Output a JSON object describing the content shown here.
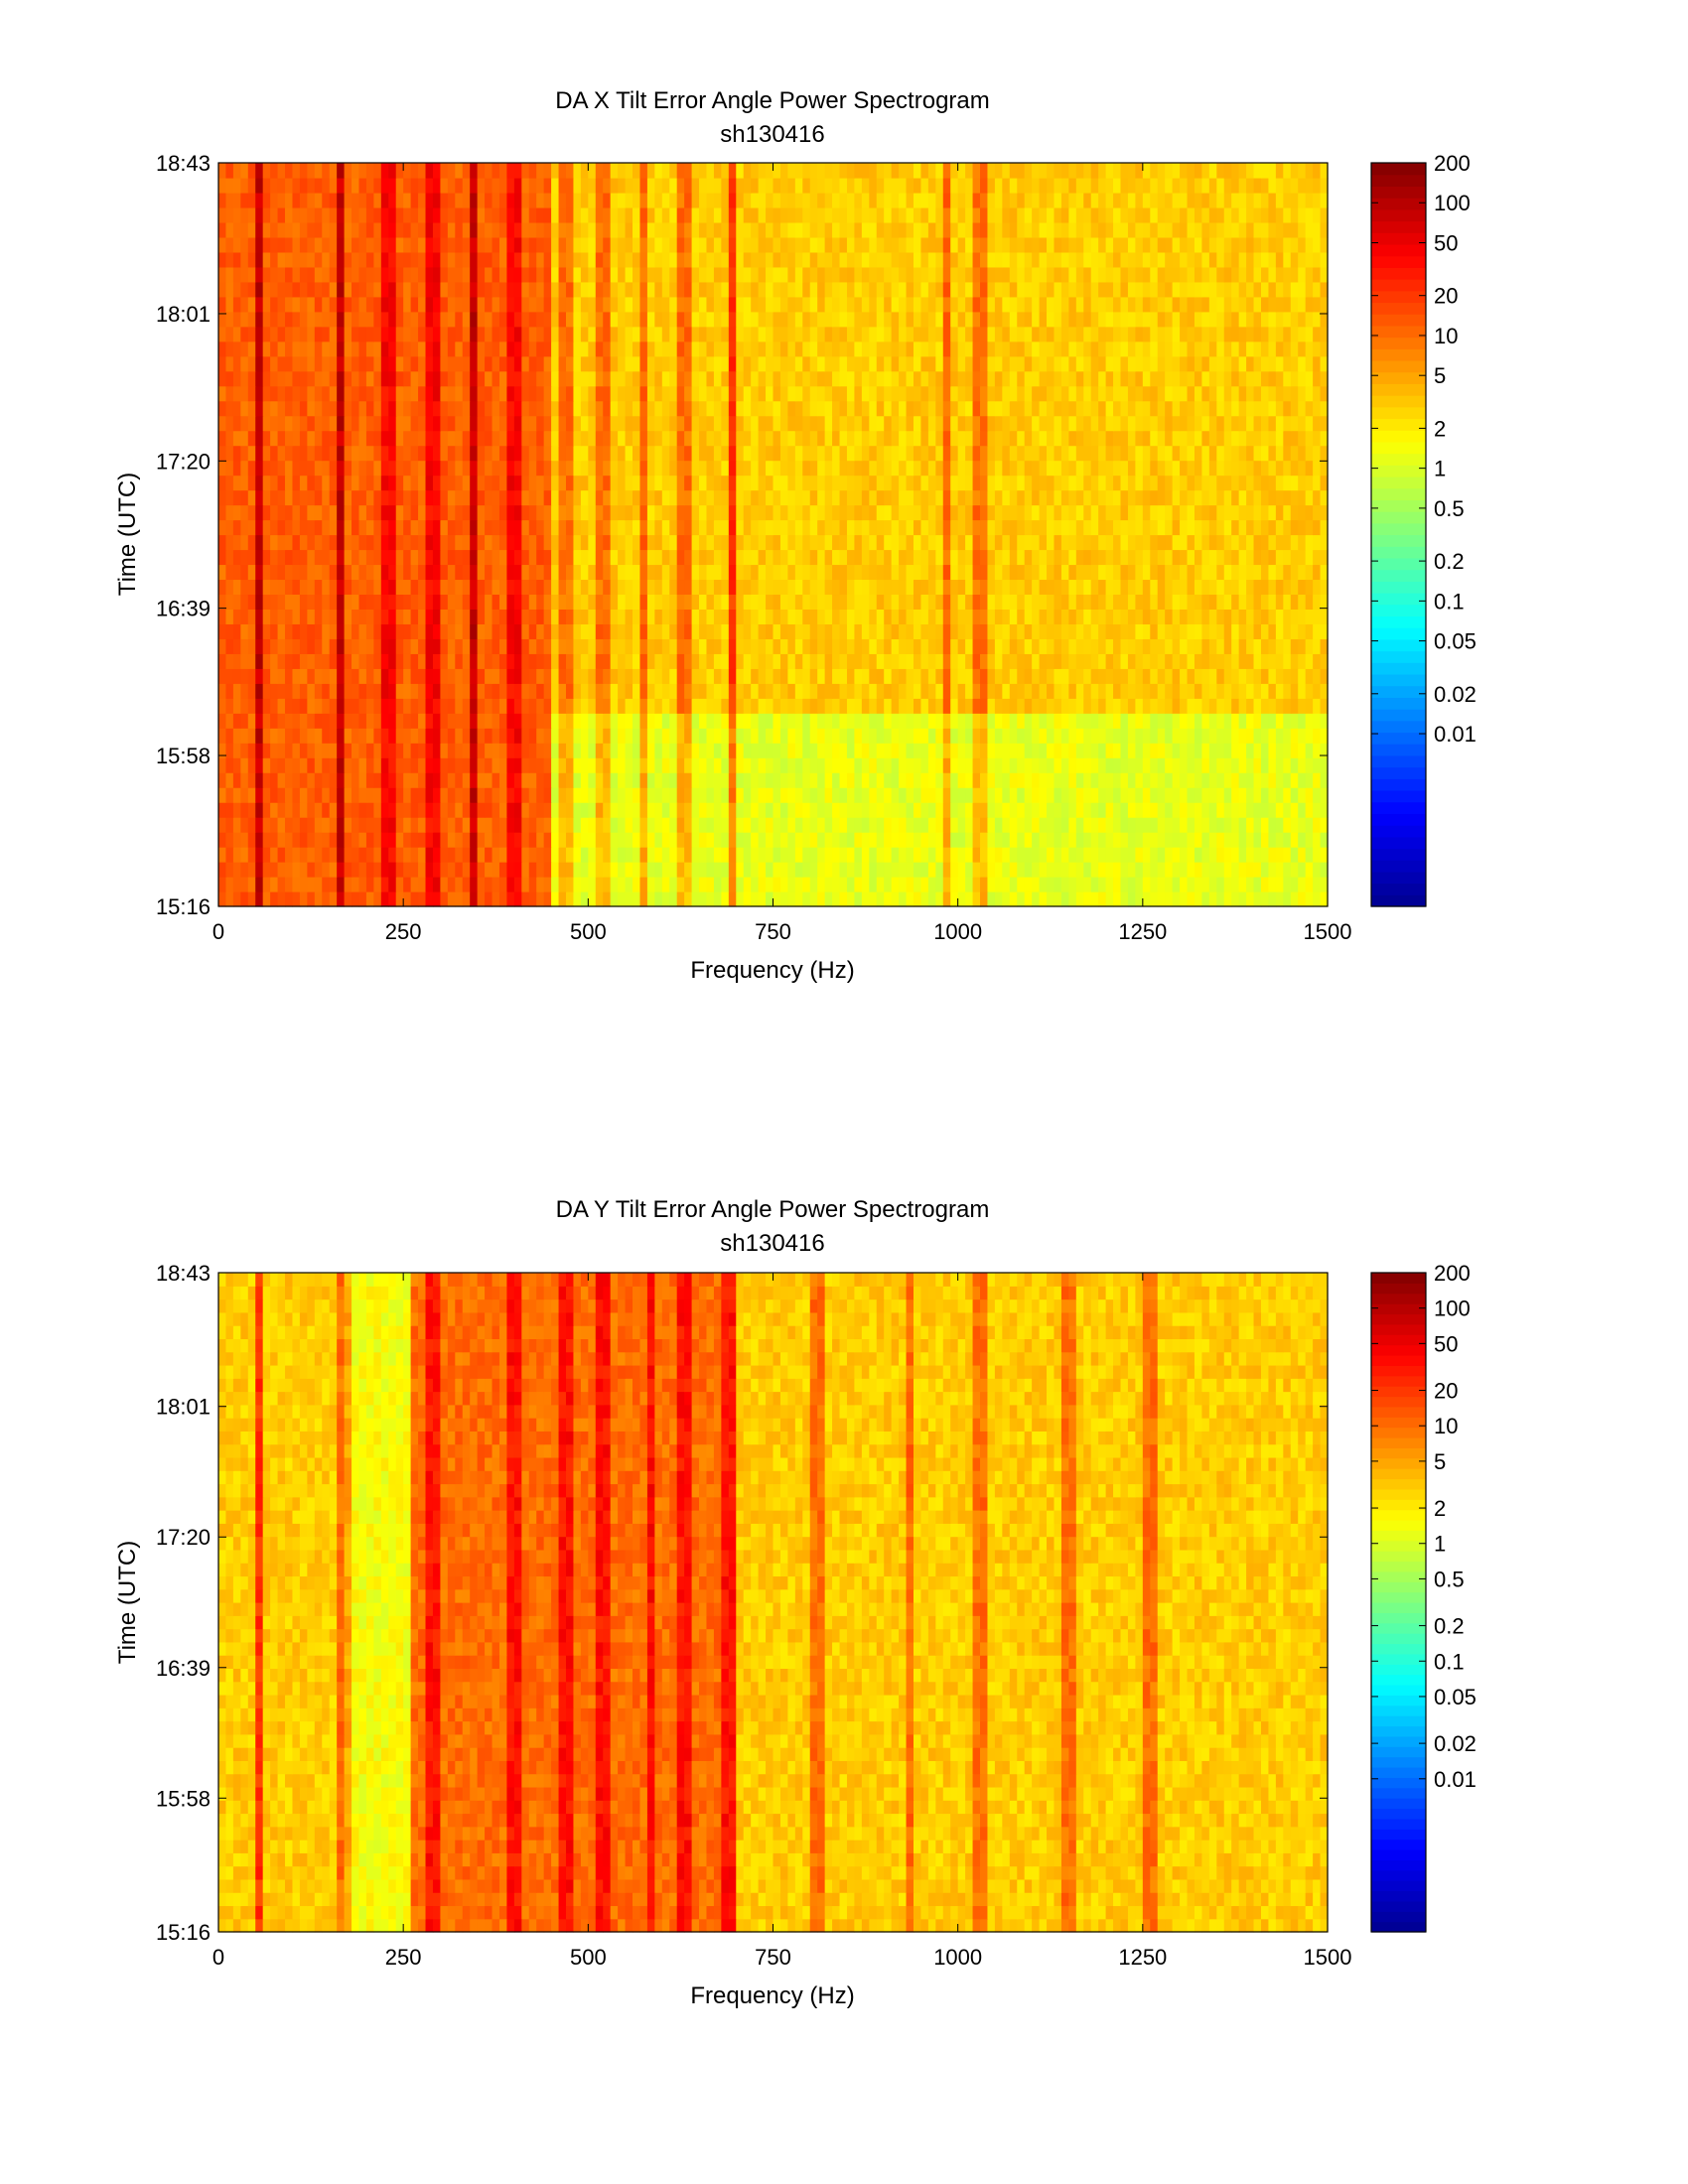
{
  "figure": {
    "colormap": [
      "#00008f",
      "#0000ff",
      "#007fff",
      "#00ffff",
      "#7fff7f",
      "#ffff00",
      "#ff7f00",
      "#ff0000",
      "#800000"
    ]
  },
  "chart_data": [
    {
      "type": "heatmap",
      "title": "DA X Tilt Error Angle Power Spectrogram",
      "subtitle": "sh130416",
      "xlabel": "Frequency (Hz)",
      "ylabel": "Time (UTC)",
      "xlim": [
        0,
        1500
      ],
      "xticks": [
        "0",
        "250",
        "500",
        "750",
        "1000",
        "1250",
        "1500"
      ],
      "yticks": [
        "15:16",
        "15:58",
        "16:39",
        "17:20",
        "18:01",
        "18:43"
      ],
      "colorbar": {
        "scale": "log",
        "range": [
          0.0005,
          200
        ],
        "ticks": [
          "200",
          "100",
          "50",
          "20",
          "10",
          "5",
          "2",
          "1",
          "0.5",
          "0.2",
          "0.1",
          "0.05",
          "0.02",
          "0.01"
        ]
      },
      "features": {
        "base_level": 3,
        "low_freq_band": {
          "x_range": [
            0,
            450
          ],
          "level": 12
        },
        "low_level_region": {
          "x_range": [
            450,
            1500
          ],
          "time_range": [
            "15:16",
            "16:10"
          ],
          "level": 1.2
        },
        "strong_lines_hz": [
          55,
          165,
          230,
          290,
          345,
          400,
          470,
          520,
          630,
          695,
          1030
        ],
        "weak_lines_hz": [
          130,
          575,
          800,
          930,
          985,
          1100,
          1180,
          1240,
          1310,
          1410
        ]
      }
    },
    {
      "type": "heatmap",
      "title": "DA Y Tilt Error Angle Power Spectrogram",
      "subtitle": "sh130416",
      "xlabel": "Frequency (Hz)",
      "ylabel": "Time (UTC)",
      "xlim": [
        0,
        1500
      ],
      "xticks": [
        "0",
        "250",
        "500",
        "750",
        "1000",
        "1250",
        "1500"
      ],
      "yticks": [
        "15:16",
        "15:58",
        "16:39",
        "17:20",
        "18:01",
        "18:43"
      ],
      "colorbar": {
        "scale": "log",
        "range": [
          0.0005,
          200
        ],
        "ticks": [
          "200",
          "100",
          "50",
          "20",
          "10",
          "5",
          "2",
          "1",
          "0.5",
          "0.2",
          "0.1",
          "0.05",
          "0.02",
          "0.01"
        ]
      },
      "features": {
        "base_level": 3,
        "low_freq_band": {
          "x_range": [
            250,
            700
          ],
          "level": 10
        },
        "low_level_region": {
          "x_range": [
            170,
            260
          ],
          "time_range": [
            "15:16",
            "18:43"
          ],
          "level": 1.5
        },
        "strong_lines_hz": [
          55,
          170,
          290,
          400,
          470,
          520,
          630,
          690,
          810,
          1030,
          1150,
          1260
        ],
        "weak_lines_hz": [
          110,
          340,
          585,
          860,
          935,
          990,
          1210,
          1320,
          1420
        ]
      }
    }
  ]
}
